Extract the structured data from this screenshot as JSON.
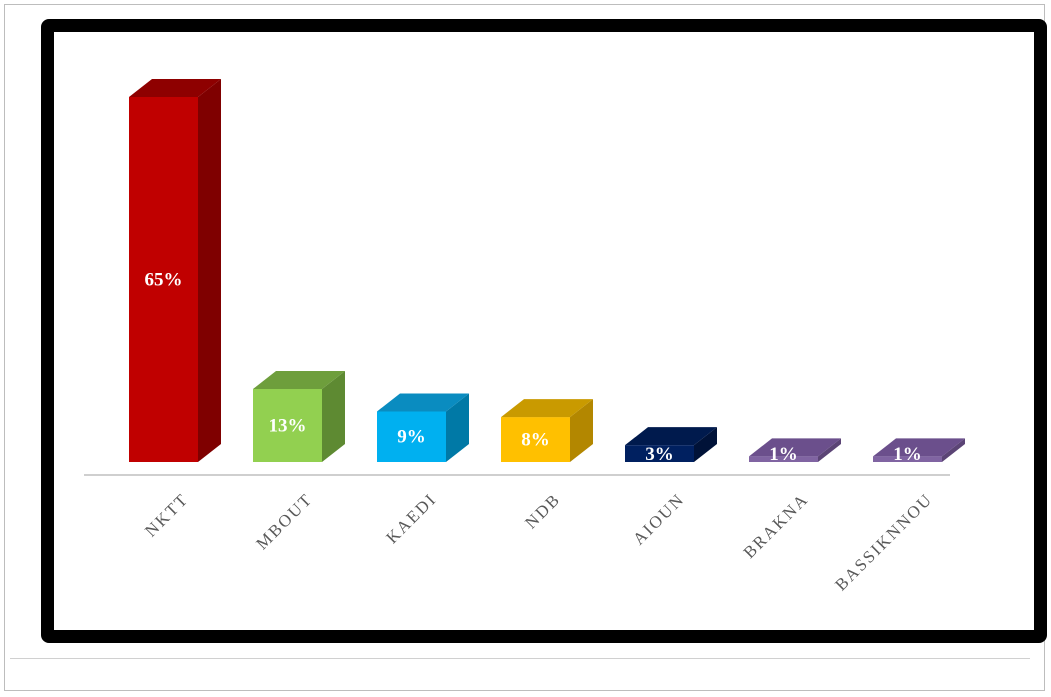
{
  "chart_data": {
    "type": "bar",
    "style": "3d-column",
    "categories": [
      "NKTT",
      "MBOUT",
      "KAEDI",
      "NDB",
      "AIOUN",
      "BRAKNA",
      "BASSIKNNOU"
    ],
    "values": [
      65,
      13,
      9,
      8,
      3,
      1,
      1
    ],
    "data_labels": [
      "65%",
      "13%",
      "9%",
      "8%",
      "3%",
      "1%",
      "1%"
    ],
    "unit": "%",
    "title": "",
    "xlabel": "",
    "ylabel": "",
    "ylim": [
      0,
      65
    ],
    "grid": false,
    "legend": "none",
    "colors": {
      "front": [
        "#C00000",
        "#92D050",
        "#00B0F0",
        "#FFC000",
        "#002060",
        "#8064A2",
        "#8064A2"
      ],
      "side": [
        "#7F0000",
        "#5E8A32",
        "#0079A6",
        "#B38700",
        "#001238",
        "#5B4475",
        "#5B4475"
      ],
      "top": [
        "#8E0000",
        "#6E9E3C",
        "#0A8CC0",
        "#C99A00",
        "#001A4D",
        "#6B4F8C",
        "#6B4F8C"
      ]
    }
  }
}
